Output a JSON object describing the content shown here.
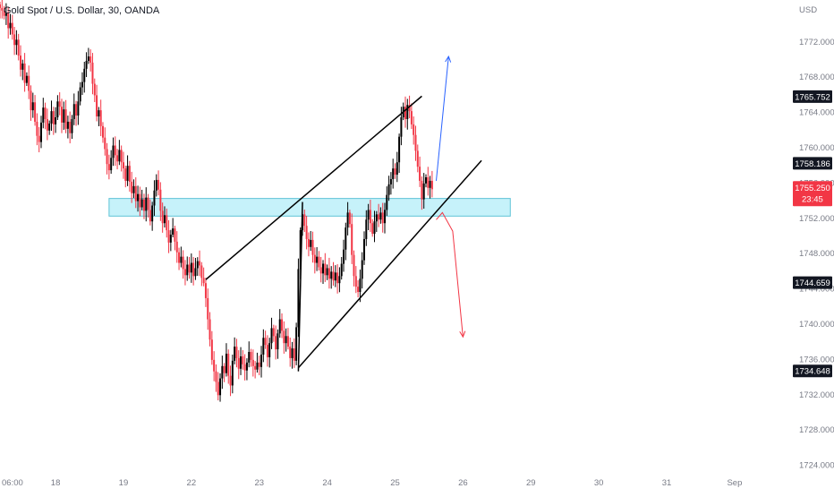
{
  "chart_data": {
    "type": "candlestick",
    "title": "Gold Spot / U.S. Dollar, 30, OANDA",
    "currency_label": "USD",
    "y_ticks": [
      1772,
      1768,
      1764,
      1760,
      1756,
      1752,
      1748,
      1744,
      1740,
      1736,
      1732,
      1728,
      1724
    ],
    "y_tick_labels": [
      "1772.000",
      "1768.000",
      "1764.000",
      "1760.000",
      "1756.000",
      "1752.000",
      "1748.000",
      "1744.000",
      "1740.000",
      "1736.000",
      "1732.000",
      "1728.000",
      "1724.000"
    ],
    "ylim": [
      1723.3,
      1776.7
    ],
    "x_ticks": [
      {
        "label": "06:00",
        "index": 0
      },
      {
        "label": "18",
        "index": 27
      },
      {
        "label": "19",
        "index": 60
      },
      {
        "label": "22",
        "index": 93
      },
      {
        "label": "23",
        "index": 126
      },
      {
        "label": "24",
        "index": 159
      },
      {
        "label": "25",
        "index": 192
      },
      {
        "label": "26",
        "index": 225
      },
      {
        "label": "29",
        "index": 258
      },
      {
        "label": "30",
        "index": 291
      },
      {
        "label": "31",
        "index": 324
      },
      {
        "label": "Sep",
        "index": 357
      }
    ],
    "xlim": [
      0,
      374
    ],
    "closes": [
      1775.8,
      1775.5,
      1774.9,
      1775.2,
      1773.5,
      1774.1,
      1772.8,
      1771.6,
      1772.2,
      1770.4,
      1768.8,
      1769.5,
      1767.3,
      1768.1,
      1766.4,
      1764.2,
      1765.1,
      1762.9,
      1761.3,
      1760.6,
      1762.8,
      1764.5,
      1763.2,
      1761.9,
      1762.7,
      1764.1,
      1762.6,
      1763.4,
      1765.2,
      1764.6,
      1762.8,
      1764.3,
      1762.1,
      1762.9,
      1761.6,
      1763.2,
      1764.9,
      1763.6,
      1765.2,
      1766.8,
      1767.4,
      1768.9,
      1769.8,
      1770.3,
      1769.6,
      1767.2,
      1765.9,
      1763.5,
      1764.2,
      1762.4,
      1761.1,
      1759.8,
      1758.1,
      1757.4,
      1758.8,
      1760.2,
      1759.1,
      1758.4,
      1759.7,
      1758.3,
      1757.6,
      1756.2,
      1757.9,
      1756.1,
      1754.8,
      1755.6,
      1753.9,
      1754.7,
      1753.2,
      1754.1,
      1752.8,
      1754.3,
      1752.9,
      1751.6,
      1753.4,
      1755.1,
      1756.3,
      1755.2,
      1752.8,
      1751.4,
      1752.3,
      1750.6,
      1749.2,
      1750.1,
      1750.8,
      1749.3,
      1748.1,
      1746.9,
      1747.6,
      1746.2,
      1745.5,
      1746.7,
      1745.8,
      1746.9,
      1745.4,
      1746.3,
      1747.1,
      1746.6,
      1745.2,
      1744.6,
      1742.9,
      1740.5,
      1738.2,
      1735.9,
      1734.6,
      1733.4,
      1731.9,
      1733.8,
      1735.2,
      1734.4,
      1736.6,
      1734.1,
      1733.0,
      1735.8,
      1737.4,
      1736.1,
      1734.9,
      1736.3,
      1735.4,
      1734.7,
      1735.6,
      1736.8,
      1735.9,
      1735.2,
      1734.8,
      1735.6,
      1735.1,
      1736.5,
      1738.4,
      1737.6,
      1736.2,
      1737.8,
      1739.5,
      1738.6,
      1737.1,
      1738.9,
      1740.5,
      1739.2,
      1737.8,
      1738.6,
      1737.4,
      1736.1,
      1737.2,
      1735.8,
      1739.6,
      1746.2,
      1750.6,
      1752.4,
      1751.1,
      1749.6,
      1748.7,
      1749.5,
      1747.8,
      1746.9,
      1747.6,
      1746.4,
      1745.7,
      1746.8,
      1745.5,
      1746.3,
      1745.1,
      1745.9,
      1744.9,
      1745.8,
      1744.6,
      1745.4,
      1746.8,
      1748.4,
      1750.9,
      1752.6,
      1751.3,
      1747.8,
      1745.4,
      1744.2,
      1743.6,
      1745.1,
      1747.2,
      1749.6,
      1751.8,
      1752.9,
      1751.4,
      1750.2,
      1751.6,
      1752.4,
      1751.8,
      1752.6,
      1751.4,
      1752.9,
      1754.6,
      1755.8,
      1756.4,
      1757.6,
      1756.9,
      1758.3,
      1761.2,
      1763.4,
      1764.6,
      1763.2,
      1764.8,
      1764.1,
      1762.6,
      1761.4,
      1759.6,
      1757.8,
      1756.2,
      1754.1,
      1755.9,
      1756.6,
      1755.4,
      1756.2,
      1755.25
    ],
    "lines": [
      {
        "label": "upper-channel",
        "x1": 100,
        "y1": 1745.0,
        "x2": 205,
        "y2": 1765.8,
        "color": "#000000"
      },
      {
        "label": "lower-channel",
        "x1": 145,
        "y1": 1735.0,
        "x2": 234,
        "y2": 1758.5,
        "color": "#000000"
      },
      {
        "label": "breakout-spike",
        "x1": 145,
        "y1": 1734.6,
        "x2": 147,
        "y2": 1753.8,
        "color": "#000000"
      }
    ],
    "zone": {
      "x1": 53,
      "x2": 248,
      "y1": 1752.2,
      "y2": 1754.2,
      "fill": "#b3eef8",
      "stroke": "#5fc3d6"
    },
    "bull_path": {
      "color": "#2962ff",
      "points": [
        [
          212,
          1756.2
        ],
        [
          218,
          1770.3
        ]
      ]
    },
    "bear_path": {
      "color": "#f23645",
      "points": [
        [
          212,
          1751.8
        ],
        [
          215,
          1752.6
        ],
        [
          220,
          1750.5
        ],
        [
          225,
          1738.5
        ]
      ]
    },
    "price_labels": [
      {
        "value": 1765.752,
        "text": "1765.752",
        "bg": "#131722",
        "fg": "#ffffff"
      },
      {
        "value": 1758.186,
        "text": "1758.186",
        "bg": "#131722",
        "fg": "#ffffff"
      },
      {
        "value": 1755.25,
        "text": "1755.250",
        "sub": "23:45",
        "bg": "#f23645",
        "fg": "#ffffff"
      },
      {
        "value": 1744.659,
        "text": "1744.659",
        "bg": "#131722",
        "fg": "#ffffff"
      },
      {
        "value": 1734.648,
        "text": "1734.648",
        "bg": "#131722",
        "fg": "#ffffff"
      }
    ],
    "colors": {
      "up": "#000000",
      "down": "#f23645",
      "text": "#131722",
      "axis": "#787b86"
    }
  }
}
